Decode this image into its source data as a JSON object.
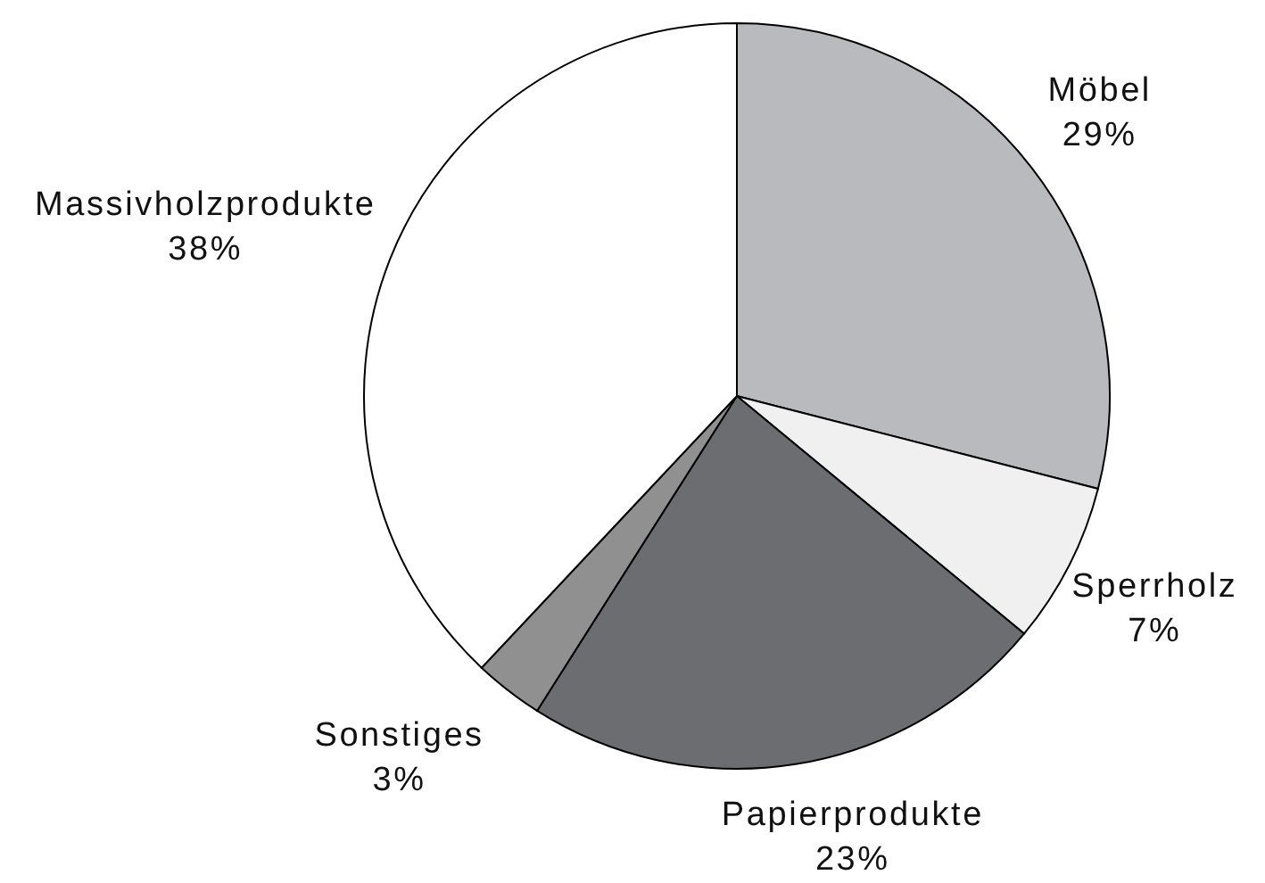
{
  "chart_data": {
    "type": "pie",
    "categories": [
      "Möbel",
      "Sperrholz",
      "Papierprodukte",
      "Sonstiges",
      "Massivholzprodukte"
    ],
    "values": [
      29,
      7,
      23,
      3,
      38
    ],
    "colors": [
      "#b9babe",
      "#f0f0f0",
      "#6c6d71",
      "#909090",
      "#ffffff"
    ],
    "value_labels": [
      "29%",
      "7%",
      "23%",
      "3%",
      "38%"
    ]
  }
}
